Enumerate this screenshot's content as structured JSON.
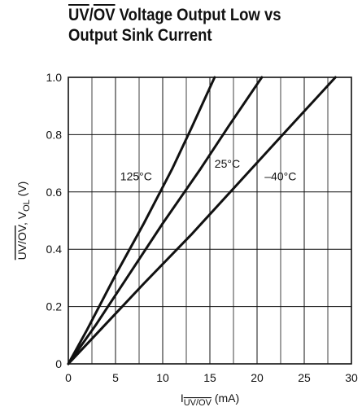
{
  "chart_data": {
    "type": "line",
    "title": {
      "line1_overlined_a": "UV",
      "line1_slash": "/",
      "line1_overlined_b": "OV",
      "line1_rest": " Voltage Output Low vs",
      "line2": "Output Sink Current"
    },
    "xlabel": {
      "base": "I",
      "sub": "UV/OV",
      "unit": " (mA)"
    },
    "ylabel": {
      "part1": "UV/OV",
      "mid": ", V",
      "sub": "OL",
      "unit": " (V)"
    },
    "xlim": [
      0,
      30
    ],
    "ylim": [
      0,
      1.0
    ],
    "x_ticks": [
      0,
      5,
      10,
      15,
      20,
      25,
      30
    ],
    "x_tick_labels": [
      "0",
      "5",
      "10",
      "15",
      "20",
      "25",
      "30"
    ],
    "y_ticks": [
      0,
      0.2,
      0.4,
      0.6,
      0.8,
      1.0
    ],
    "y_tick_labels": [
      "0",
      "0.2",
      "0.4",
      "0.6",
      "0.8",
      "1.0"
    ],
    "grid": true,
    "series": [
      {
        "name": "125°C",
        "x": [
          0,
          2,
          5,
          8,
          11,
          13,
          15.5
        ],
        "y": [
          0,
          0.12,
          0.31,
          0.49,
          0.68,
          0.82,
          1.0
        ]
      },
      {
        "name": "25°C",
        "x": [
          0,
          3,
          6,
          10,
          14,
          17,
          20.5
        ],
        "y": [
          0,
          0.14,
          0.29,
          0.49,
          0.68,
          0.83,
          1.0
        ]
      },
      {
        "name": "–40°C",
        "x": [
          0,
          4,
          8,
          13,
          18,
          23,
          28.3
        ],
        "y": [
          0,
          0.14,
          0.28,
          0.45,
          0.63,
          0.81,
          1.0
        ]
      }
    ],
    "label_positions": [
      {
        "series": "125°C",
        "x": 5.5,
        "y": 0.64
      },
      {
        "series": "25°C",
        "x": 15.5,
        "y": 0.685
      },
      {
        "series": "–40°C",
        "x": 20.8,
        "y": 0.64
      }
    ],
    "colors": {
      "line": "#111111",
      "grid": "#111111",
      "background": "#ffffff"
    }
  }
}
